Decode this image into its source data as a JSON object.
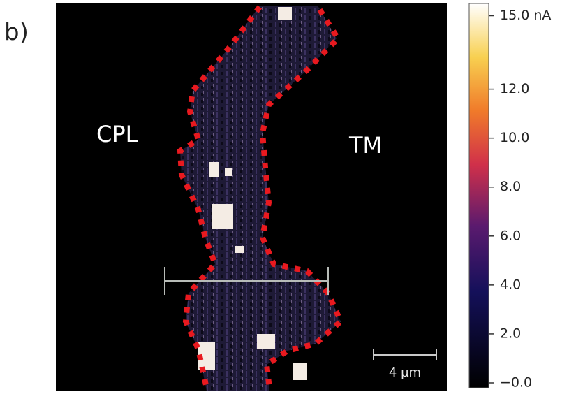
{
  "panel_label": "b)",
  "regions": {
    "left": "CPL",
    "right": "TM"
  },
  "scale_bar": "4 µm",
  "colorbar": {
    "ylim": [
      -0.2,
      15.5
    ],
    "ticks": [
      {
        "value": 15,
        "label": "15.0 nA"
      },
      {
        "value": 12,
        "label": "12.0"
      },
      {
        "value": 10,
        "label": "10.0"
      },
      {
        "value": 8,
        "label": "8.0"
      },
      {
        "value": 6,
        "label": "6.0"
      },
      {
        "value": 4,
        "label": "4.0"
      },
      {
        "value": 2,
        "label": "2.0"
      },
      {
        "value": 0,
        "label": "−0.0"
      }
    ]
  }
}
